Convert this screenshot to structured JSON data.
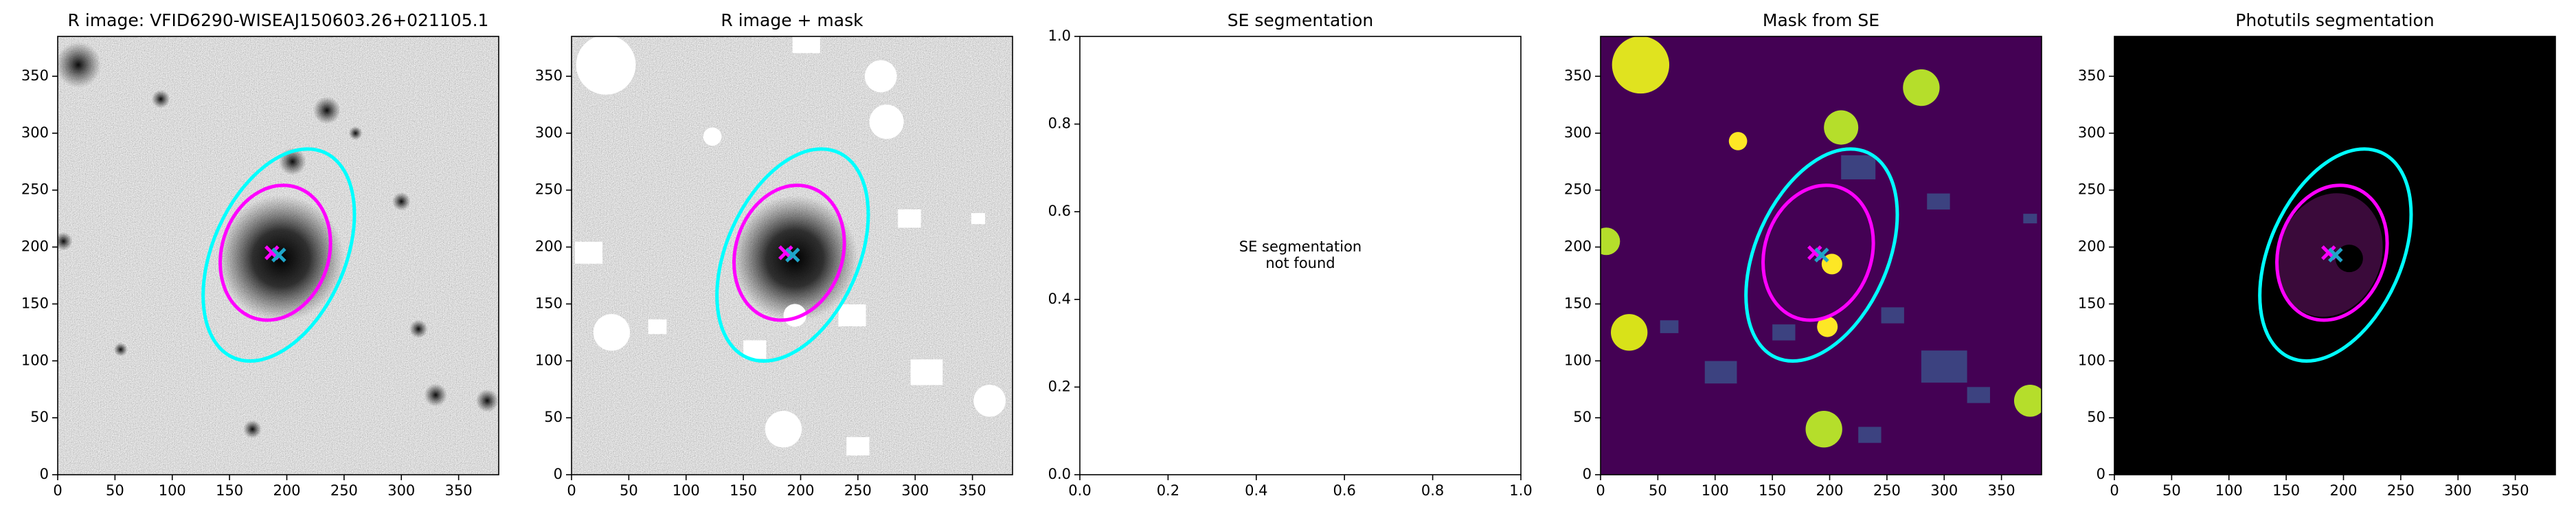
{
  "chart_data": [
    {
      "type": "image",
      "title": "R image: VFID6290-WISEAJ150603.26+021105.1",
      "cmap": "gray",
      "xlim": [
        0,
        385
      ],
      "ylim": [
        0,
        385
      ],
      "xticks": [
        0,
        50,
        100,
        150,
        200,
        250,
        300,
        350
      ],
      "yticks": [
        0,
        50,
        100,
        150,
        200,
        250,
        300,
        350
      ],
      "ellipses": [
        {
          "color": "#00ffff",
          "x": 193,
          "y": 193,
          "a": 98,
          "b": 58,
          "angle": 66
        },
        {
          "color": "#ff00ff",
          "x": 190,
          "y": 195,
          "a": 60,
          "b": 47,
          "angle": 72
        }
      ],
      "markers": [
        {
          "color": "#ff00ff",
          "x": 187,
          "y": 195
        },
        {
          "color": "#1fa5c8",
          "x": 193,
          "y": 193
        }
      ]
    },
    {
      "type": "image",
      "title": "R image + mask",
      "cmap": "gray-masked",
      "xlim": [
        0,
        385
      ],
      "ylim": [
        0,
        385
      ],
      "xticks": [
        0,
        50,
        100,
        150,
        200,
        250,
        300,
        350
      ],
      "yticks": [
        0,
        50,
        100,
        150,
        200,
        250,
        300,
        350
      ],
      "ellipses": [
        {
          "color": "#00ffff",
          "x": 193,
          "y": 193,
          "a": 98,
          "b": 58,
          "angle": 66
        },
        {
          "color": "#ff00ff",
          "x": 190,
          "y": 195,
          "a": 60,
          "b": 47,
          "angle": 72
        }
      ],
      "markers": [
        {
          "color": "#ff00ff",
          "x": 187,
          "y": 195
        },
        {
          "color": "#1fa5c8",
          "x": 193,
          "y": 193
        }
      ]
    },
    {
      "type": "blank",
      "title": "SE segmentation",
      "annotation": [
        "SE segmentation",
        "not found"
      ],
      "xlim": [
        0,
        1
      ],
      "ylim": [
        0,
        1
      ],
      "xticks": [
        {
          "value": 0,
          "label": "0.0"
        },
        {
          "value": 0.2,
          "label": "0.2"
        },
        {
          "value": 0.4,
          "label": "0.4"
        },
        {
          "value": 0.6,
          "label": "0.6"
        },
        {
          "value": 0.8,
          "label": "0.8"
        },
        {
          "value": 1,
          "label": "1.0"
        }
      ],
      "yticks": [
        {
          "value": 0,
          "label": "0.0"
        },
        {
          "value": 0.2,
          "label": "0.2"
        },
        {
          "value": 0.4,
          "label": "0.4"
        },
        {
          "value": 0.6,
          "label": "0.6"
        },
        {
          "value": 0.8,
          "label": "0.8"
        },
        {
          "value": 1,
          "label": "1.0"
        }
      ]
    },
    {
      "type": "image",
      "title": "Mask from SE",
      "cmap": "viridis",
      "xlim": [
        0,
        385
      ],
      "ylim": [
        0,
        385
      ],
      "xticks": [
        0,
        50,
        100,
        150,
        200,
        250,
        300,
        350
      ],
      "yticks": [
        0,
        50,
        100,
        150,
        200,
        250,
        300,
        350
      ],
      "ellipses": [
        {
          "color": "#00ffff",
          "x": 193,
          "y": 193,
          "a": 98,
          "b": 58,
          "angle": 66
        },
        {
          "color": "#ff00ff",
          "x": 190,
          "y": 195,
          "a": 60,
          "b": 47,
          "angle": 72
        }
      ],
      "markers": [
        {
          "color": "#ff00ff",
          "x": 187,
          "y": 195
        },
        {
          "color": "#1fa5c8",
          "x": 193,
          "y": 193
        }
      ]
    },
    {
      "type": "image",
      "title": "Photutils segmentation",
      "cmap": "black",
      "xlim": [
        0,
        385
      ],
      "ylim": [
        0,
        385
      ],
      "xticks": [
        0,
        50,
        100,
        150,
        200,
        250,
        300,
        350
      ],
      "yticks": [
        0,
        50,
        100,
        150,
        200,
        250,
        300,
        350
      ],
      "ellipses": [
        {
          "color": "#00ffff",
          "x": 193,
          "y": 193,
          "a": 98,
          "b": 58,
          "angle": 66
        },
        {
          "color": "#ff00ff",
          "x": 190,
          "y": 195,
          "a": 60,
          "b": 47,
          "angle": 72
        }
      ],
      "markers": [
        {
          "color": "#ff00ff",
          "x": 187,
          "y": 195
        },
        {
          "color": "#1fa5c8",
          "x": 193,
          "y": 193
        }
      ]
    }
  ]
}
